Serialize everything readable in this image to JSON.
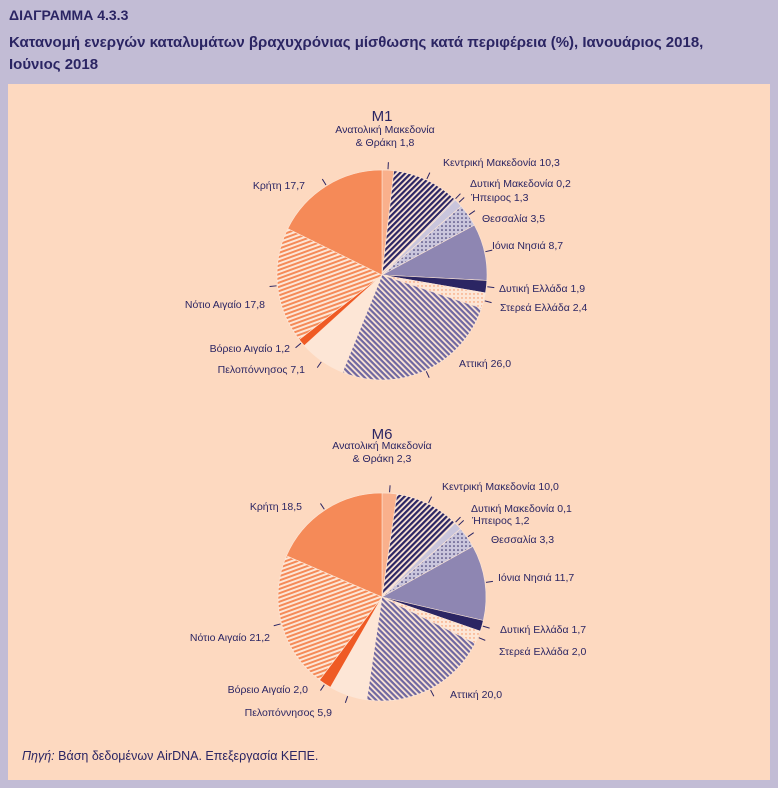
{
  "header": {
    "figure_label": "ΔΙΑΓΡΑΜΜΑ 4.3.3",
    "title": "Κατανομή ενεργών καταλυμάτων βραχυχρόνιας μίσθωσης κατά περιφέρεια (%), Ιανουάριος 2018, Ιούνιος 2018"
  },
  "source": {
    "prefix": "Πηγή:",
    "text": " Βάση δεδομένων AirDNA. Επεξεργασία ΚΕΠΕ."
  },
  "colors": {
    "background": "#c2bcd5",
    "panel": "#fdd9c0",
    "text": "#2b2563",
    "light_orange": "#f9b08c",
    "navy": "#2b2563",
    "lavender": "#8e86b2",
    "light_lavender": "#c9c5dc",
    "orange": "#f58a58",
    "red_orange": "#ef5a24",
    "pale": "#fde6d6"
  },
  "chart_data": [
    {
      "type": "pie",
      "title": "M1",
      "categories": [
        "Ανατολική Μακεδονία & Θράκη",
        "Κεντρική Μακεδονία",
        "Δυτική Μακεδονία",
        "Ήπειρος",
        "Θεσσαλία",
        "Ιόνια Νησιά",
        "Δυτική Ελλάδα",
        "Στερεά Ελλάδα",
        "Αττική",
        "Πελοπόννησος",
        "Βόρειο Αιγαίο",
        "Νότιο Αιγαίο",
        "Κρήτη"
      ],
      "values": [
        1.8,
        10.3,
        0.2,
        1.3,
        3.5,
        8.7,
        1.9,
        2.4,
        26.0,
        7.1,
        1.2,
        17.8,
        17.7
      ],
      "labels": [
        "Ανατολική Μακεδονία|& Θράκη 1,8",
        "Κεντρική Μακεδονία 10,3",
        "Δυτική Μακεδονία 0,2",
        "Ήπειρος 1,3",
        "Θεσσαλία 3,5",
        "Ιόνια Νησιά 8,7",
        "Δυτική Ελλάδα 1,9",
        "Στερεά Ελλάδα 2,4",
        "Αττική 26,0",
        "Πελοπόννησος 7,1",
        "Βόρειο Αιγαίο 1,2",
        "Νότιο Αιγαίο 17,8",
        "Κρήτη 17,7"
      ]
    },
    {
      "type": "pie",
      "title": "M6",
      "categories": [
        "Ανατολική Μακεδονία & Θράκη",
        "Κεντρική Μακεδονία",
        "Δυτική Μακεδονία",
        "Ήπειρος",
        "Θεσσαλία",
        "Ιόνια Νησιά",
        "Δυτική Ελλάδα",
        "Στερεά Ελλάδα",
        "Αττική",
        "Πελοπόννησος",
        "Βόρειο Αιγαίο",
        "Νότιο Αιγαίο",
        "Κρήτη"
      ],
      "values": [
        2.3,
        10.0,
        0.1,
        1.2,
        3.3,
        11.7,
        1.7,
        2.0,
        20.0,
        5.9,
        2.0,
        21.2,
        18.5
      ],
      "labels": [
        "Ανατολική Μακεδονία|& Θράκη 2,3",
        "Κεντρική Μακεδονία 10,0",
        "Δυτική Μακεδονία 0,1",
        "Ήπειρος 1,2",
        "Θεσσαλία 3,3",
        "Ιόνια Νησιά 11,7",
        "Δυτική Ελλάδα 1,7",
        "Στερεά Ελλάδα 2,0",
        "Αττική 20,0",
        "Πελοπόννησος 5,9",
        "Βόρειο Αιγαίο 2,0",
        "Νότιο Αιγαίο 21,2",
        "Κρήτη 18,5"
      ]
    }
  ]
}
